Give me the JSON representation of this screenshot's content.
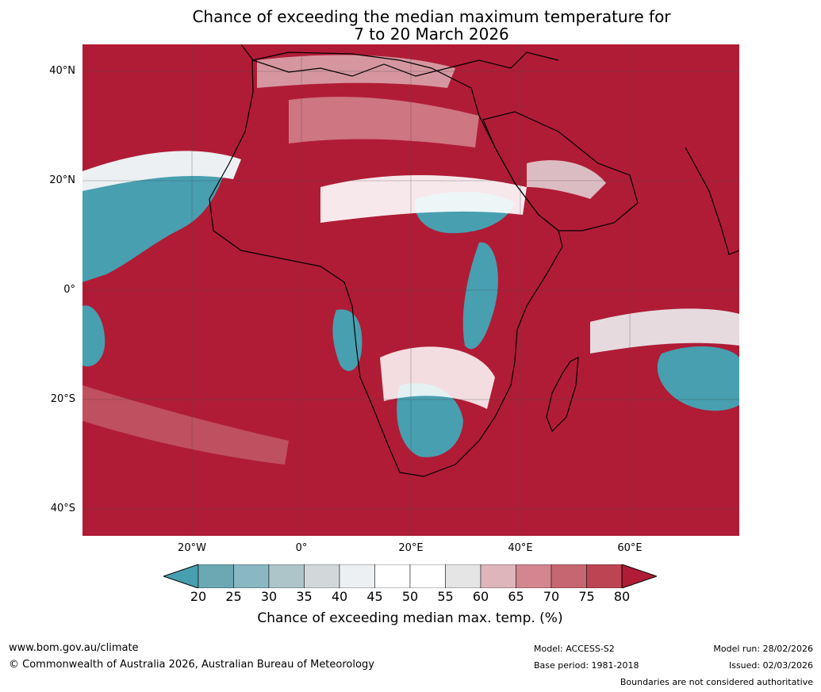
{
  "title": {
    "line1": "Chance of exceeding the median maximum temperature for",
    "line2": "7 to 20 March 2026"
  },
  "map": {
    "region": "Africa",
    "lat_ticks": [
      "40°N",
      "20°N",
      "0°",
      "20°S",
      "40°S"
    ],
    "lon_ticks": [
      "20°W",
      "0°",
      "20°E",
      "40°E",
      "60°E"
    ],
    "colors": {
      "hot": "#b01c36",
      "cool": "#479fb0",
      "neutral": "#ffffff"
    }
  },
  "colorbar": {
    "title": "Chance of exceeding median max. temp. (%)",
    "labels": [
      "20",
      "25",
      "30",
      "35",
      "40",
      "45",
      "50",
      "55",
      "60",
      "65",
      "70",
      "75",
      "80"
    ],
    "colors": [
      "#479fb0",
      "#6aa8b3",
      "#89b7c2",
      "#adc4c9",
      "#d2d8da",
      "#ecf0f2",
      "#ffffff",
      "#ffffff",
      "#e6e5e6",
      "#dfb5bc",
      "#d3868f",
      "#c66670",
      "#bc4554",
      "#b01c36"
    ]
  },
  "footer": {
    "website": "www.bom.gov.au/climate",
    "copyright": "© Commonwealth of Australia 2026, Australian Bureau of Meteorology",
    "model": "Model: ACCESS-S2",
    "base_period": "Base period: 1981-2018",
    "model_run": "Model run: 28/02/2026",
    "issued": "Issued: 02/03/2026",
    "boundaries": "Boundaries are not considered authoritative"
  }
}
